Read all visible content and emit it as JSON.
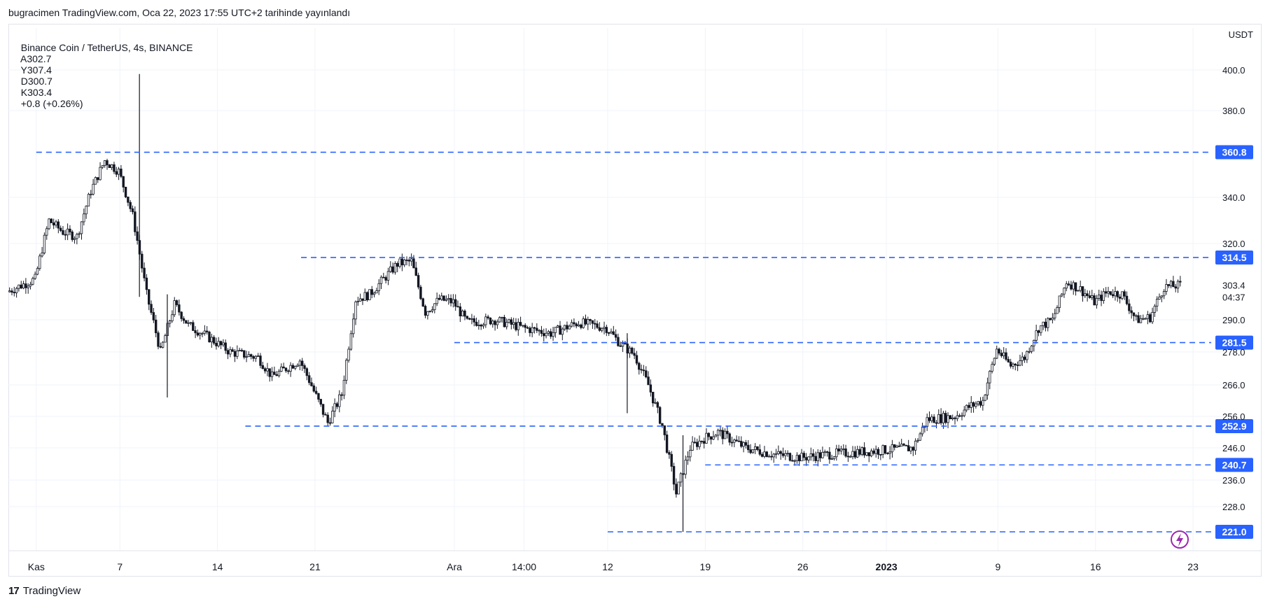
{
  "header": {
    "published": "bugracimen TradingView.com, Oca 22, 2023 17:55 UTC+2 tarihinde yayınlandı"
  },
  "legend": {
    "symbol": "Binance Coin / TetherUS, 4s, BINANCE",
    "open": "A302.7",
    "high": "Y307.4",
    "low": "D300.7",
    "close": "K303.4",
    "change": "+0.8 (+0.26%)"
  },
  "currency": "USDT",
  "footer": {
    "brand": "TradingView",
    "logo_icon": "tradingview-logo-icon"
  },
  "colors": {
    "candle": "#131722",
    "level_line": "#2962ff",
    "level_label_bg": "#2962ff",
    "grid": "#f0f3fa",
    "alert_icon": "#9c27b0"
  },
  "chart_data": {
    "type": "candlestick",
    "title": "",
    "xlabel": "",
    "ylabel": "",
    "ylim": [
      216,
      404
    ],
    "y_ticks": [
      {
        "value": 400,
        "label": "400.0"
      },
      {
        "value": 380,
        "label": "380.0"
      },
      {
        "value": 340,
        "label": "340.0"
      },
      {
        "value": 320,
        "label": "320.0"
      },
      {
        "value": 290,
        "label": "290.0"
      },
      {
        "value": 278,
        "label": "278.0"
      },
      {
        "value": 266,
        "label": "266.0"
      },
      {
        "value": 256,
        "label": "256.0"
      },
      {
        "value": 246,
        "label": "246.0"
      },
      {
        "value": 236,
        "label": "236.0"
      },
      {
        "value": 228,
        "label": "228.0"
      }
    ],
    "x_range": [
      "2022-10-30",
      "2023-01-24"
    ],
    "x_ticks": [
      {
        "date": "2022-11-01",
        "label": "Kas",
        "bold": false
      },
      {
        "date": "2022-11-07",
        "label": "7",
        "bold": false
      },
      {
        "date": "2022-11-14",
        "label": "14",
        "bold": false
      },
      {
        "date": "2022-11-21",
        "label": "21",
        "bold": false
      },
      {
        "date": "2022-12-01",
        "label": "Ara",
        "bold": false
      },
      {
        "date": "2022-12-06",
        "label": "14:00",
        "bold": false
      },
      {
        "date": "2022-12-12",
        "label": "12",
        "bold": false
      },
      {
        "date": "2022-12-19",
        "label": "19",
        "bold": false
      },
      {
        "date": "2022-12-26",
        "label": "26",
        "bold": false
      },
      {
        "date": "2023-01-01",
        "label": "2023",
        "bold": true
      },
      {
        "date": "2023-01-09",
        "label": "9",
        "bold": false
      },
      {
        "date": "2023-01-16",
        "label": "16",
        "bold": false
      },
      {
        "date": "2023-01-23",
        "label": "23",
        "bold": false
      }
    ],
    "price_path": [
      [
        "2022-10-30",
        301
      ],
      [
        "2022-11-01",
        306
      ],
      [
        "2022-11-02",
        330
      ],
      [
        "2022-11-03",
        325
      ],
      [
        "2022-11-04",
        323
      ],
      [
        "2022-11-05",
        343
      ],
      [
        "2022-11-06",
        357
      ],
      [
        "2022-11-07",
        352
      ],
      [
        "2022-11-08",
        332
      ],
      [
        "2022-11-09",
        300
      ],
      [
        "2022-11-10",
        278
      ],
      [
        "2022-11-11",
        296
      ],
      [
        "2022-11-12",
        288
      ],
      [
        "2022-11-13",
        285
      ],
      [
        "2022-11-15",
        278
      ],
      [
        "2022-11-17",
        276
      ],
      [
        "2022-11-18",
        269
      ],
      [
        "2022-11-20",
        275
      ],
      [
        "2022-11-21",
        264
      ],
      [
        "2022-11-22",
        254
      ],
      [
        "2022-11-23",
        263
      ],
      [
        "2022-11-24",
        298
      ],
      [
        "2022-11-25",
        300
      ],
      [
        "2022-11-27",
        312
      ],
      [
        "2022-11-28",
        313
      ],
      [
        "2022-11-29",
        293
      ],
      [
        "2022-11-30",
        298
      ],
      [
        "2022-12-01",
        297
      ],
      [
        "2022-12-02",
        289
      ],
      [
        "2022-12-04",
        290
      ],
      [
        "2022-12-06",
        287
      ],
      [
        "2022-12-08",
        285
      ],
      [
        "2022-12-10",
        289
      ],
      [
        "2022-12-12",
        287
      ],
      [
        "2022-12-13",
        281
      ],
      [
        "2022-12-14",
        277
      ],
      [
        "2022-12-15",
        266
      ],
      [
        "2022-12-16",
        253
      ],
      [
        "2022-12-17",
        232
      ],
      [
        "2022-12-18",
        246
      ],
      [
        "2022-12-19",
        249
      ],
      [
        "2022-12-20",
        251
      ],
      [
        "2022-12-22",
        246
      ],
      [
        "2022-12-24",
        244
      ],
      [
        "2022-12-26",
        243
      ],
      [
        "2022-12-28",
        244
      ],
      [
        "2022-12-31",
        245
      ],
      [
        "2023-01-03",
        246
      ],
      [
        "2023-01-04",
        255
      ],
      [
        "2023-01-06",
        256
      ],
      [
        "2023-01-07",
        259
      ],
      [
        "2023-01-08",
        261
      ],
      [
        "2023-01-09",
        279
      ],
      [
        "2023-01-10",
        273
      ],
      [
        "2023-01-11",
        276
      ],
      [
        "2023-01-12",
        287
      ],
      [
        "2023-01-13",
        290
      ],
      [
        "2023-01-14",
        305
      ],
      [
        "2023-01-15",
        302
      ],
      [
        "2023-01-16",
        297
      ],
      [
        "2023-01-17",
        301
      ],
      [
        "2023-01-18",
        300
      ],
      [
        "2023-01-19",
        290
      ],
      [
        "2023-01-20",
        291
      ],
      [
        "2023-01-21",
        303
      ],
      [
        "2023-01-22",
        303.4
      ]
    ],
    "spikes": [
      {
        "date": "2022-11-08",
        "high": 398,
        "low": 299
      },
      {
        "date": "2022-11-10",
        "high": 300,
        "low": 262
      },
      {
        "date": "2022-12-17",
        "high": 250,
        "low": 221
      },
      {
        "date": "2022-12-13",
        "high": 285,
        "low": 257
      }
    ],
    "horizontal_levels": [
      {
        "value": 360.8,
        "label": "360.8",
        "start": "2022-11-01"
      },
      {
        "value": 314.5,
        "label": "314.5",
        "start": "2022-11-20"
      },
      {
        "value": 281.5,
        "label": "281.5",
        "start": "2022-12-01"
      },
      {
        "value": 252.9,
        "label": "252.9",
        "start": "2022-11-16"
      },
      {
        "value": 240.7,
        "label": "240.7",
        "start": "2022-12-19"
      },
      {
        "value": 221.0,
        "label": "221.0",
        "start": "2022-12-12"
      }
    ],
    "last_price": {
      "value": 303.4,
      "label": "303.4",
      "countdown": "04:37"
    }
  }
}
